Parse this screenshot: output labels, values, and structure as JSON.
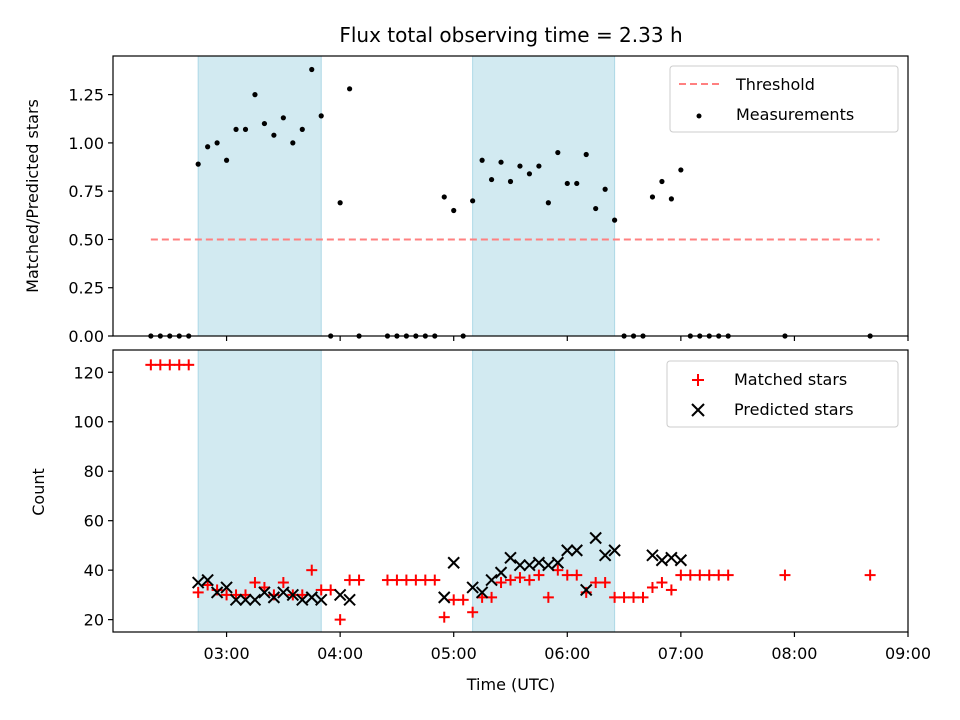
{
  "chart_data": [
    {
      "type": "scatter",
      "panel": "top",
      "title": "Flux total observing time = 2.33 h",
      "xlabel": "",
      "ylabel": "Matched/Predicted stars",
      "xlim": [
        "02:00",
        "09:00"
      ],
      "ylim": [
        0,
        1.45
      ],
      "yticks": [
        "0.00",
        "0.25",
        "0.50",
        "0.75",
        "1.00",
        "1.25"
      ],
      "xticks": [
        "03:00",
        "04:00",
        "05:00",
        "06:00",
        "07:00",
        "08:00",
        "09:00"
      ],
      "xtick_labels_shown": false,
      "shaded_intervals": [
        [
          "02:45",
          "03:50"
        ],
        [
          "05:10",
          "06:25"
        ]
      ],
      "shade_color": "#add8e6",
      "threshold": {
        "name": "Threshold",
        "y": 0.5,
        "x_start": "02:20",
        "x_end": "08:45",
        "color": "#ff8080",
        "style": "dashed"
      },
      "series": [
        {
          "name": "Measurements",
          "marker": "dot",
          "color": "#000000",
          "points": [
            [
              "02:20",
              0
            ],
            [
              "02:25",
              0
            ],
            [
              "02:30",
              0
            ],
            [
              "02:35",
              0
            ],
            [
              "02:40",
              0
            ],
            [
              "02:45",
              0.89
            ],
            [
              "02:50",
              0.98
            ],
            [
              "02:55",
              1.0
            ],
            [
              "03:00",
              0.91
            ],
            [
              "03:05",
              1.07
            ],
            [
              "03:10",
              1.07
            ],
            [
              "03:15",
              1.25
            ],
            [
              "03:20",
              1.1
            ],
            [
              "03:25",
              1.04
            ],
            [
              "03:30",
              1.13
            ],
            [
              "03:35",
              1.0
            ],
            [
              "03:40",
              1.07
            ],
            [
              "03:45",
              1.38
            ],
            [
              "03:50",
              1.14
            ],
            [
              "03:55",
              0
            ],
            [
              "04:00",
              0.69
            ],
            [
              "04:05",
              1.28
            ],
            [
              "04:10",
              0
            ],
            [
              "04:25",
              0
            ],
            [
              "04:30",
              0
            ],
            [
              "04:35",
              0
            ],
            [
              "04:40",
              0
            ],
            [
              "04:45",
              0
            ],
            [
              "04:50",
              0
            ],
            [
              "04:55",
              0.72
            ],
            [
              "05:00",
              0.65
            ],
            [
              "05:05",
              0
            ],
            [
              "05:10",
              0.7
            ],
            [
              "05:15",
              0.91
            ],
            [
              "05:20",
              0.81
            ],
            [
              "05:25",
              0.9
            ],
            [
              "05:30",
              0.8
            ],
            [
              "05:35",
              0.88
            ],
            [
              "05:40",
              0.84
            ],
            [
              "05:45",
              0.88
            ],
            [
              "05:50",
              0.69
            ],
            [
              "05:55",
              0.95
            ],
            [
              "06:00",
              0.79
            ],
            [
              "06:05",
              0.79
            ],
            [
              "06:10",
              0.94
            ],
            [
              "06:15",
              0.66
            ],
            [
              "06:20",
              0.76
            ],
            [
              "06:25",
              0.6
            ],
            [
              "06:30",
              0
            ],
            [
              "06:35",
              0
            ],
            [
              "06:40",
              0
            ],
            [
              "06:45",
              0.72
            ],
            [
              "06:50",
              0.8
            ],
            [
              "06:55",
              0.71
            ],
            [
              "07:00",
              0.86
            ],
            [
              "07:05",
              0
            ],
            [
              "07:10",
              0
            ],
            [
              "07:15",
              0
            ],
            [
              "07:20",
              0
            ],
            [
              "07:25",
              0
            ],
            [
              "07:55",
              0
            ],
            [
              "08:40",
              0
            ]
          ]
        }
      ],
      "legend": {
        "placement": "top-right",
        "entries": [
          "Threshold",
          "Measurements"
        ]
      }
    },
    {
      "type": "scatter",
      "panel": "bottom",
      "title": "",
      "xlabel": "Time (UTC)",
      "ylabel": "Count",
      "xlim": [
        "02:00",
        "09:00"
      ],
      "ylim": [
        15,
        129
      ],
      "yticks": [
        "20",
        "40",
        "60",
        "80",
        "100",
        "120"
      ],
      "xticks": [
        "03:00",
        "04:00",
        "05:00",
        "06:00",
        "07:00",
        "08:00",
        "09:00"
      ],
      "shaded_intervals": [
        [
          "02:45",
          "03:50"
        ],
        [
          "05:10",
          "06:25"
        ]
      ],
      "shade_color": "#add8e6",
      "series": [
        {
          "name": "Matched stars",
          "marker": "plus",
          "color": "#ff0000",
          "points": [
            [
              "02:20",
              123
            ],
            [
              "02:25",
              123
            ],
            [
              "02:30",
              123
            ],
            [
              "02:35",
              123
            ],
            [
              "02:40",
              123
            ],
            [
              "02:45",
              31
            ],
            [
              "02:50",
              34
            ],
            [
              "02:55",
              32
            ],
            [
              "03:00",
              30
            ],
            [
              "03:05",
              30
            ],
            [
              "03:10",
              30
            ],
            [
              "03:15",
              35
            ],
            [
              "03:20",
              33
            ],
            [
              "03:25",
              30
            ],
            [
              "03:30",
              35
            ],
            [
              "03:35",
              30
            ],
            [
              "03:40",
              30
            ],
            [
              "03:45",
              40
            ],
            [
              "03:50",
              32
            ],
            [
              "03:55",
              32
            ],
            [
              "04:00",
              20
            ],
            [
              "04:05",
              36
            ],
            [
              "04:10",
              36
            ],
            [
              "04:25",
              36
            ],
            [
              "04:30",
              36
            ],
            [
              "04:35",
              36
            ],
            [
              "04:40",
              36
            ],
            [
              "04:45",
              36
            ],
            [
              "04:50",
              36
            ],
            [
              "04:55",
              21
            ],
            [
              "05:00",
              28
            ],
            [
              "05:05",
              28
            ],
            [
              "05:10",
              23
            ],
            [
              "05:15",
              29
            ],
            [
              "05:20",
              29
            ],
            [
              "05:25",
              35
            ],
            [
              "05:30",
              36
            ],
            [
              "05:35",
              37
            ],
            [
              "05:40",
              36
            ],
            [
              "05:45",
              38
            ],
            [
              "05:50",
              29
            ],
            [
              "05:55",
              40
            ],
            [
              "06:00",
              38
            ],
            [
              "06:05",
              38
            ],
            [
              "06:10",
              31
            ],
            [
              "06:15",
              35
            ],
            [
              "06:20",
              35
            ],
            [
              "06:25",
              29
            ],
            [
              "06:30",
              29
            ],
            [
              "06:35",
              29
            ],
            [
              "06:40",
              29
            ],
            [
              "06:45",
              33
            ],
            [
              "06:50",
              35
            ],
            [
              "06:55",
              32
            ],
            [
              "07:00",
              38
            ],
            [
              "07:05",
              38
            ],
            [
              "07:10",
              38
            ],
            [
              "07:15",
              38
            ],
            [
              "07:20",
              38
            ],
            [
              "07:25",
              38
            ],
            [
              "07:55",
              38
            ],
            [
              "08:40",
              38
            ]
          ]
        },
        {
          "name": "Predicted stars",
          "marker": "x",
          "color": "#000000",
          "points": [
            [
              "02:45",
              35
            ],
            [
              "02:50",
              36
            ],
            [
              "02:55",
              31
            ],
            [
              "03:00",
              33
            ],
            [
              "03:05",
              28
            ],
            [
              "03:10",
              28
            ],
            [
              "03:15",
              28
            ],
            [
              "03:20",
              31
            ],
            [
              "03:25",
              29
            ],
            [
              "03:30",
              31
            ],
            [
              "03:35",
              30
            ],
            [
              "03:40",
              28
            ],
            [
              "03:45",
              29
            ],
            [
              "03:50",
              28
            ],
            [
              "04:00",
              30
            ],
            [
              "04:05",
              28
            ],
            [
              "04:55",
              29
            ],
            [
              "05:00",
              43
            ],
            [
              "05:10",
              33
            ],
            [
              "05:15",
              31
            ],
            [
              "05:20",
              36
            ],
            [
              "05:25",
              39
            ],
            [
              "05:30",
              45
            ],
            [
              "05:35",
              42
            ],
            [
              "05:40",
              42
            ],
            [
              "05:45",
              43
            ],
            [
              "05:50",
              42
            ],
            [
              "05:55",
              43
            ],
            [
              "06:00",
              48
            ],
            [
              "06:05",
              48
            ],
            [
              "06:10",
              32
            ],
            [
              "06:15",
              53
            ],
            [
              "06:20",
              46
            ],
            [
              "06:25",
              48
            ],
            [
              "06:45",
              46
            ],
            [
              "06:50",
              44
            ],
            [
              "06:55",
              45
            ],
            [
              "07:00",
              44
            ]
          ]
        }
      ],
      "legend": {
        "placement": "top-right",
        "entries": [
          "Matched stars",
          "Predicted stars"
        ]
      }
    }
  ]
}
